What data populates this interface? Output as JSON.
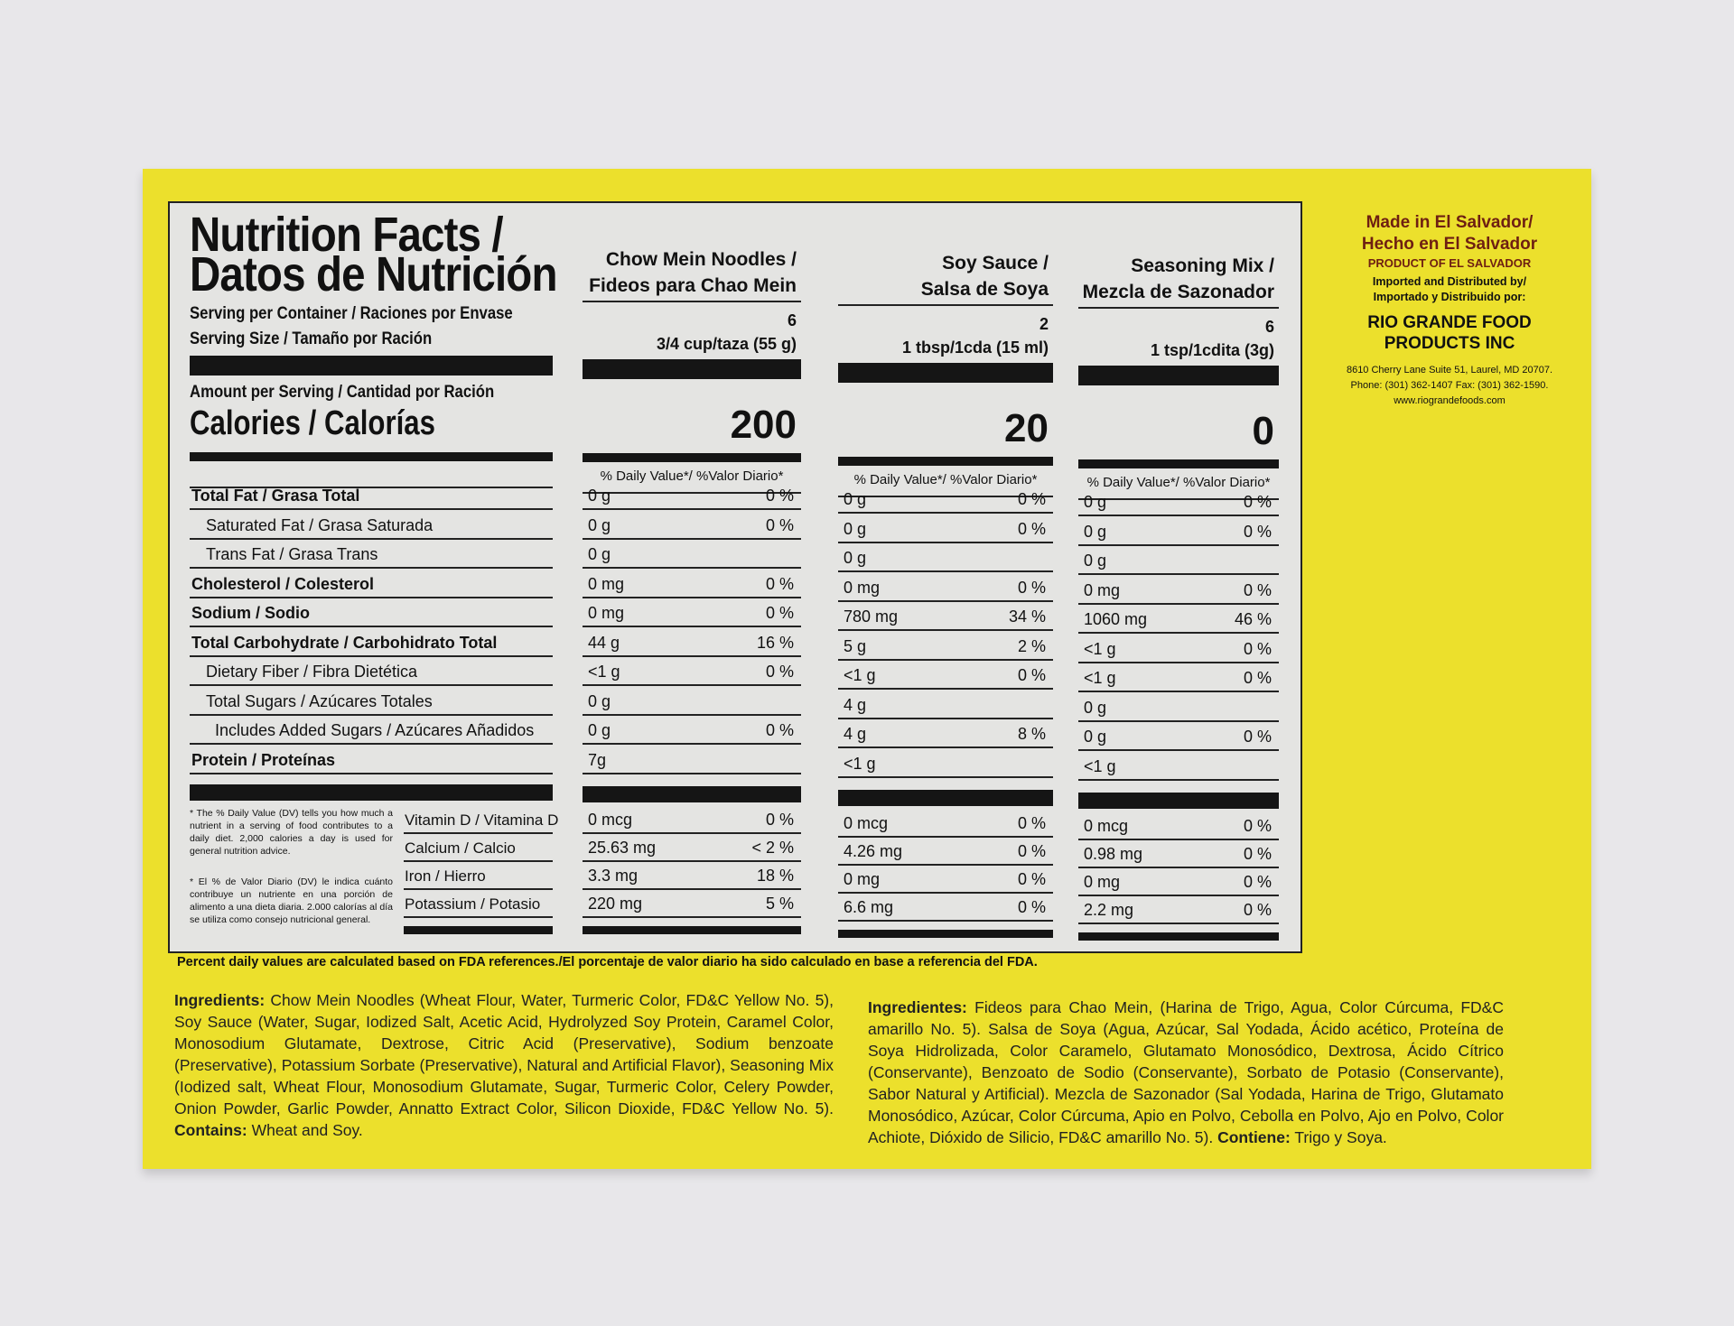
{
  "title": {
    "en": "Nutrition Facts /",
    "es": "Datos de Nutrición"
  },
  "serving_container": "Serving per Container / Raciones por Envase",
  "serving_size": "Serving Size / Tamaño por Ración",
  "amount_per_serving": "Amount per Serving / Cantidad por Ración",
  "calories_label": "Calories / Calorías",
  "dv_header": "% Daily Value*/ %Valor Diario*",
  "columns": [
    {
      "name1": "Chow Mein Noodles /",
      "name2": "Fideos para Chao Mein",
      "servings": "6",
      "size": "3/4 cup/taza (55 g)",
      "calories": "200"
    },
    {
      "name1": "Soy Sauce /",
      "name2": "Salsa de Soya",
      "servings": "2",
      "size": "1 tbsp/1cda (15 ml)",
      "calories": "20"
    },
    {
      "name1": "Seasoning Mix /",
      "name2": "Mezcla de Sazonador",
      "servings": "6",
      "size": "1 tsp/1cdita (3g)",
      "calories": "0"
    }
  ],
  "nutrients": [
    {
      "label": "Total Fat / Grasa Total",
      "bold": true,
      "indent": 0,
      "values": [
        [
          "0 g",
          "0 %"
        ],
        [
          "0 g",
          "0 %"
        ],
        [
          "0 g",
          "0 %"
        ]
      ]
    },
    {
      "label": "Saturated Fat / Grasa Saturada",
      "bold": false,
      "indent": 1,
      "values": [
        [
          "0 g",
          "0 %"
        ],
        [
          "0 g",
          "0 %"
        ],
        [
          "0 g",
          "0 %"
        ]
      ]
    },
    {
      "label": "Trans Fat / Grasa Trans",
      "bold": false,
      "indent": 1,
      "values": [
        [
          "0 g",
          ""
        ],
        [
          "0 g",
          ""
        ],
        [
          "0 g",
          ""
        ]
      ]
    },
    {
      "label": "Cholesterol / Colesterol",
      "bold": true,
      "indent": 0,
      "values": [
        [
          "0 mg",
          "0 %"
        ],
        [
          "0 mg",
          "0 %"
        ],
        [
          "0 mg",
          "0 %"
        ]
      ]
    },
    {
      "label": "Sodium / Sodio",
      "bold": true,
      "indent": 0,
      "values": [
        [
          "0 mg",
          "0 %"
        ],
        [
          "780 mg",
          "34 %"
        ],
        [
          "1060 mg",
          "46 %"
        ]
      ]
    },
    {
      "label": "Total Carbohydrate / Carbohidrato Total",
      "bold": true,
      "indent": 0,
      "values": [
        [
          "44 g",
          "16 %"
        ],
        [
          "5 g",
          "2 %"
        ],
        [
          "<1 g",
          "0 %"
        ]
      ]
    },
    {
      "label": "Dietary Fiber / Fibra Dietética",
      "bold": false,
      "indent": 1,
      "values": [
        [
          "<1 g",
          "0 %"
        ],
        [
          "<1 g",
          "0 %"
        ],
        [
          "<1 g",
          "0 %"
        ]
      ]
    },
    {
      "label": "Total Sugars / Azúcares Totales",
      "bold": false,
      "indent": 1,
      "values": [
        [
          "0 g",
          ""
        ],
        [
          "4 g",
          ""
        ],
        [
          "0 g",
          ""
        ]
      ]
    },
    {
      "label": "Includes Added Sugars / Azúcares Añadidos",
      "bold": false,
      "indent": 2,
      "values": [
        [
          "0 g",
          "0 %"
        ],
        [
          "4 g",
          "8 %"
        ],
        [
          "0 g",
          "0 %"
        ]
      ]
    },
    {
      "label": "Protein / Proteínas",
      "bold": true,
      "indent": 0,
      "values": [
        [
          "7g",
          ""
        ],
        [
          "<1 g",
          ""
        ],
        [
          "<1 g",
          ""
        ]
      ]
    }
  ],
  "vitamins": [
    {
      "label": "Vitamin D / Vitamina D",
      "values": [
        [
          "0 mcg",
          "0 %"
        ],
        [
          "0 mcg",
          "0 %"
        ],
        [
          "0 mcg",
          "0 %"
        ]
      ]
    },
    {
      "label": "Calcium / Calcio",
      "values": [
        [
          "25.63 mg",
          "<  2 %"
        ],
        [
          "4.26 mg",
          "0 %"
        ],
        [
          "0.98 mg",
          "0 %"
        ]
      ]
    },
    {
      "label": "Iron / Hierro",
      "values": [
        [
          "3.3   mg",
          "18 %"
        ],
        [
          "0 mg",
          "0 %"
        ],
        [
          "0 mg",
          "0 %"
        ]
      ]
    },
    {
      "label": "Potassium / Potasio",
      "values": [
        [
          "220 mg",
          "5 %"
        ],
        [
          "6.6 mg",
          "0 %"
        ],
        [
          "2.2 mg",
          "0 %"
        ]
      ]
    }
  ],
  "footnote_en": "* The % Daily Value (DV) tells you how much a nutrient in a serving of food contributes to a daily diet. 2,000 calories a day is used for general nutrition advice.",
  "footnote_es": "* El % de Valor Diario (DV) le indica cuánto contribuye un nutriente en una porción de alimento a una dieta diaria. 2.000 calorías al día se utiliza como consejo nutricional general.",
  "fda_note": "Percent daily values are calculated based on FDA references./El porcentaje de valor diario ha sido calculado en base a referencia del FDA.",
  "ingredients_en": {
    "label": "Ingredients:",
    "text": " Chow Mein Noodles (Wheat Flour, Water, Turmeric Color, FD&C Yellow No. 5), Soy Sauce (Water, Sugar, Iodized Salt, Acetic Acid, Hydrolyzed Soy Protein, Caramel Color, Monosodium Glutamate, Dextrose, Citric Acid (Preservative), Sodium benzoate (Preservative), Potassium Sorbate (Preservative), Natural and Artificial Flavor), Seasoning Mix (Iodized salt, Wheat Flour, Monosodium Glutamate, Sugar, Turmeric Color, Celery Powder, Onion Powder, Garlic Powder, Annatto Extract Color, Silicon Dioxide, FD&C Yellow No. 5).",
    "contains_label": " Contains:",
    "contains": " Wheat and Soy."
  },
  "ingredients_es": {
    "label": "Ingredientes:",
    "text": " Fideos para Chao Mein, (Harina de Trigo, Agua, Color Cúrcuma, FD&C amarillo No. 5). Salsa de Soya (Agua, Azúcar, Sal Yodada, Ácido acético, Proteína de Soya Hidrolizada, Color Caramelo, Glutamato Monosódico, Dextrosa, Ácido Cítrico (Conservante), Benzoato de Sodio (Conservante), Sorbato de Potasio (Conservante), Sabor Natural y Artificial). Mezcla de Sazonador (Sal Yodada, Harina de Trigo, Glutamato Monosódico, Azúcar, Color Cúrcuma, Apio en Polvo, Cebolla en Polvo, Ajo en Polvo, Color Achiote, Dióxido de Silicio, FD&C amarillo No. 5).",
    "contains_label": " Contiene:",
    "contains": " Trigo y Soya."
  },
  "origin": {
    "line1": "Made in El Salvador/",
    "line2": "Hecho en El Salvador",
    "line3": "PRODUCT OF EL SALVADOR",
    "imported1": "Imported and Distributed by/",
    "imported2": "Importado y Distribuido por:",
    "company1": "RIO GRANDE FOOD",
    "company2": "PRODUCTS INC",
    "address": "8610 Cherry Lane Suite 51, Laurel, MD 20707.",
    "phone": "Phone: (301) 362-1407  Fax: (301) 362-1590.",
    "web": "www.riograndefoods.com"
  },
  "colors": {
    "box": "#ece02c",
    "panel": "#e4e4e2",
    "origin_brown": "#6e1f12"
  }
}
